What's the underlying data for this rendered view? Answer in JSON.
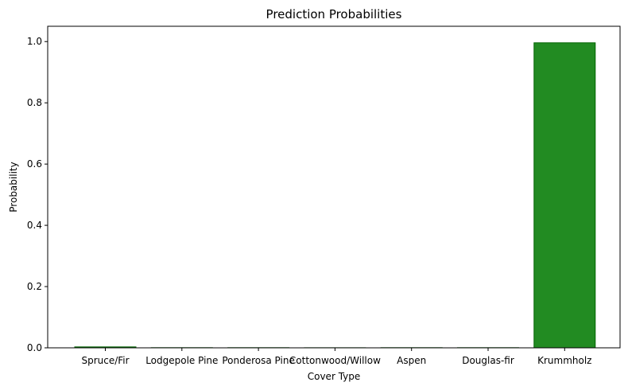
{
  "chart_data": {
    "type": "bar",
    "title": "Prediction Probabilities",
    "xlabel": "Cover Type",
    "ylabel": "Probability",
    "categories": [
      "Spruce/Fir",
      "Lodgepole Pine",
      "Ponderosa Pine",
      "Cottonwood/Willow",
      "Aspen",
      "Douglas-fir",
      "Krummholz"
    ],
    "values": [
      0.003,
      0.0005,
      0.0005,
      0.0003,
      0.0005,
      0.0005,
      0.996
    ],
    "ylim": [
      0,
      1.05
    ],
    "yticks": [
      "0.0",
      "0.2",
      "0.4",
      "0.6",
      "0.8",
      "1.0"
    ],
    "grid": false,
    "colors": {
      "bar_fill": "#228b22",
      "bar_edge": "#006400",
      "axis": "#000000"
    }
  }
}
